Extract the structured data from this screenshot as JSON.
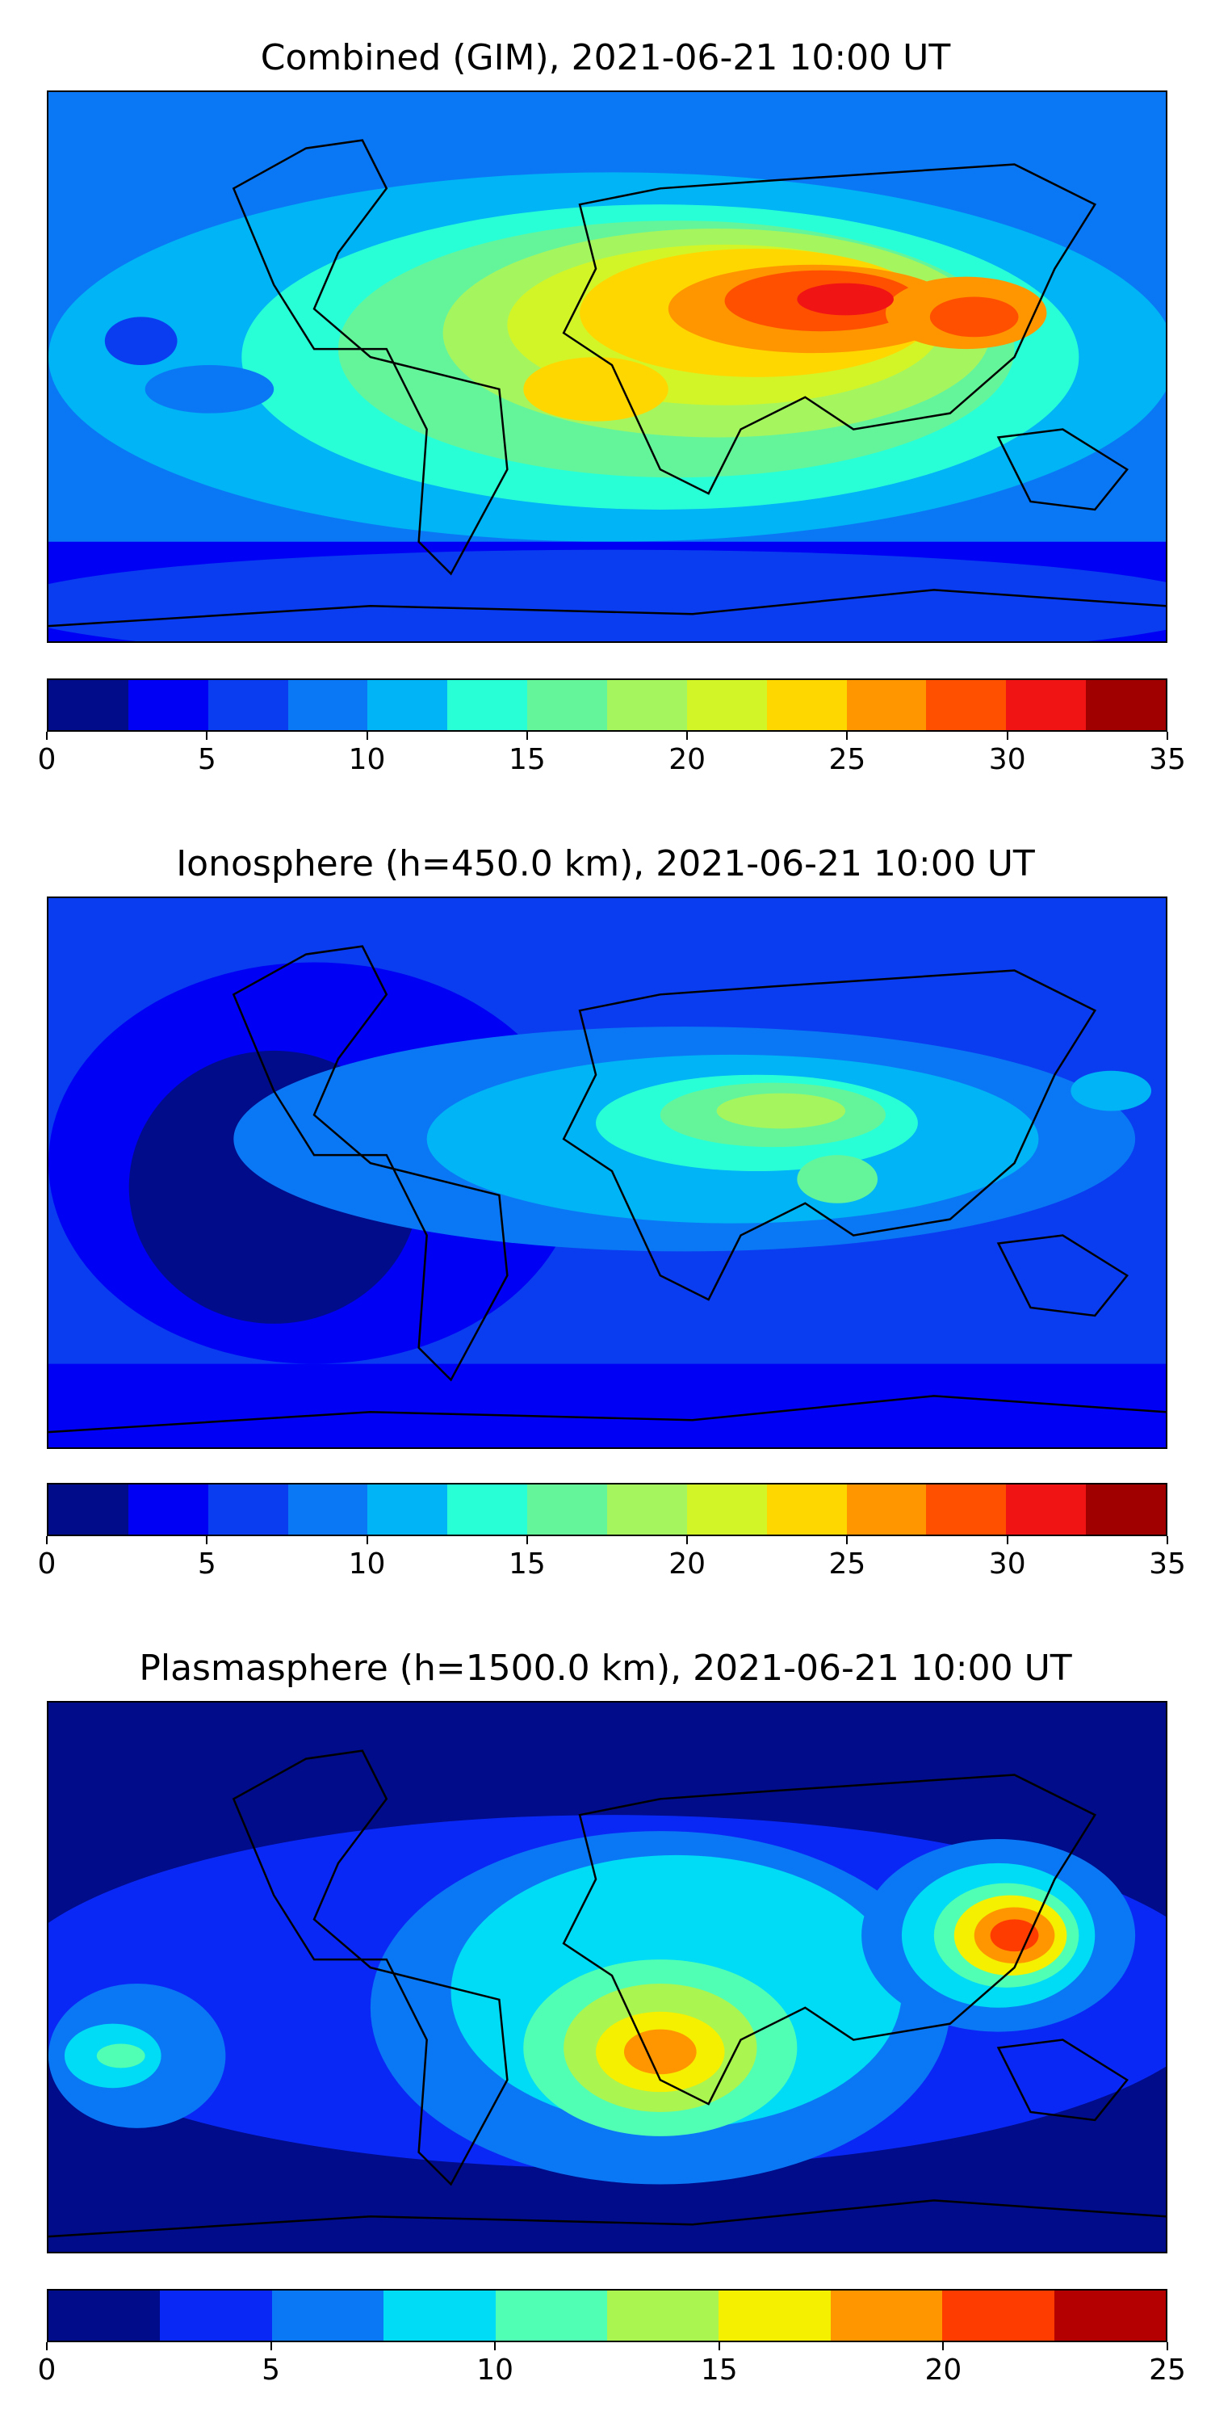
{
  "panels": [
    {
      "title": "Combined (GIM), 2021-06-21 10:00 UT",
      "colorbar": {
        "min": 0,
        "max": 35,
        "ticks": [
          "0",
          "5",
          "10",
          "15",
          "20",
          "25",
          "30",
          "35"
        ],
        "tick_values": [
          0,
          5,
          10,
          15,
          20,
          25,
          30,
          35
        ],
        "colors": [
          "#000c8a",
          "#0000f5",
          "#0a3cf0",
          "#0a78f5",
          "#00b4f5",
          "#28ffd7",
          "#64f59b",
          "#a5f55f",
          "#d2f528",
          "#ffd700",
          "#ff9600",
          "#ff5000",
          "#f01414",
          "#a00000"
        ]
      }
    },
    {
      "title": "Ionosphere  (h=450.0 km), 2021-06-21 10:00 UT",
      "colorbar": {
        "min": 0,
        "max": 35,
        "ticks": [
          "0",
          "5",
          "10",
          "15",
          "20",
          "25",
          "30",
          "35"
        ],
        "tick_values": [
          0,
          5,
          10,
          15,
          20,
          25,
          30,
          35
        ],
        "colors": [
          "#000c8a",
          "#0000f5",
          "#0a3cf0",
          "#0a78f5",
          "#00b4f5",
          "#28ffd7",
          "#64f59b",
          "#a5f55f",
          "#d2f528",
          "#ffd700",
          "#ff9600",
          "#ff5000",
          "#f01414",
          "#a00000"
        ]
      }
    },
    {
      "title": "Plasmasphere (h=1500.0 km), 2021-06-21 10:00 UT",
      "colorbar": {
        "min": 0,
        "max": 25,
        "ticks": [
          "0",
          "5",
          "10",
          "15",
          "20",
          "25"
        ],
        "tick_values": [
          0,
          5,
          10,
          15,
          20,
          25
        ],
        "colors": [
          "#000c8a",
          "#0a28f5",
          "#0a78f5",
          "#00dcf5",
          "#50ffb4",
          "#aaf550",
          "#f5f000",
          "#ff9600",
          "#ff3c00",
          "#b40000"
        ]
      }
    }
  ]
}
